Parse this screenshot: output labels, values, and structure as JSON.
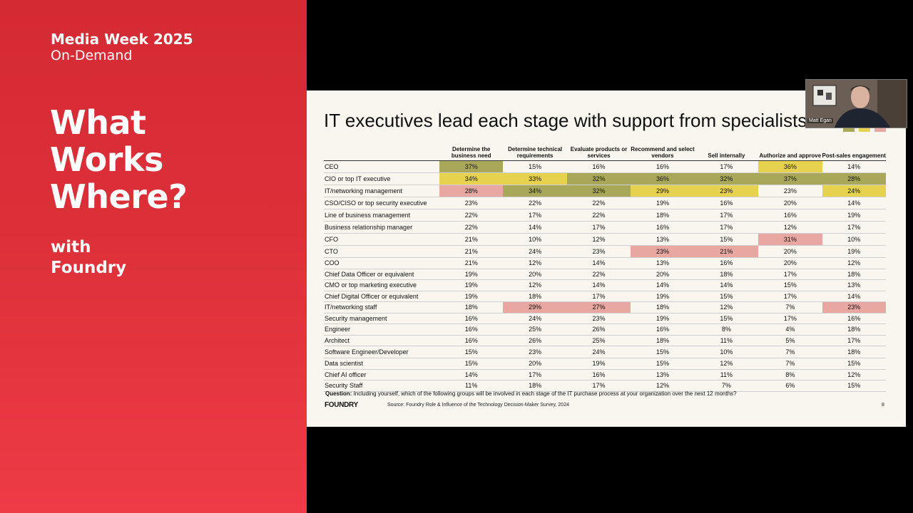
{
  "event": {
    "title": "Media Week 2025",
    "subtitle": "On-Demand"
  },
  "headline": {
    "line1": "What",
    "line2": "Works",
    "line3": "Where?"
  },
  "with": {
    "line1": "with",
    "line2": "Foundry"
  },
  "slide": {
    "title": "IT executives lead each stage with support from specialists",
    "columns": [
      "Determine the business need",
      "Determine technical requirements",
      "Evaluate products or services",
      "Recommend and select vendors",
      "Sell internally",
      "Authorize and approve",
      "Post-sales engagement"
    ],
    "rows": [
      {
        "label": "CEO",
        "values": [
          "37%",
          "15%",
          "16%",
          "16%",
          "17%",
          "36%",
          "14%"
        ],
        "hl": [
          "g",
          "",
          "",
          "",
          "",
          "y",
          ""
        ]
      },
      {
        "label": "CIO or top IT executive",
        "values": [
          "34%",
          "33%",
          "32%",
          "36%",
          "32%",
          "37%",
          "28%"
        ],
        "hl": [
          "y",
          "y",
          "g",
          "g",
          "g",
          "g",
          "g"
        ]
      },
      {
        "label": "IT/networking management",
        "values": [
          "28%",
          "34%",
          "32%",
          "29%",
          "23%",
          "23%",
          "24%"
        ],
        "hl": [
          "p",
          "g",
          "g",
          "y",
          "y",
          "",
          "y"
        ]
      },
      {
        "label": "CSO/CISO or top security executive",
        "values": [
          "23%",
          "22%",
          "22%",
          "19%",
          "16%",
          "20%",
          "14%"
        ],
        "hl": [
          "",
          "",
          "",
          "",
          "",
          "",
          ""
        ]
      },
      {
        "label": "Line of business management",
        "values": [
          "22%",
          "17%",
          "22%",
          "18%",
          "17%",
          "16%",
          "19%"
        ],
        "hl": [
          "",
          "",
          "",
          "",
          "",
          "",
          ""
        ]
      },
      {
        "label": "Business relationship manager",
        "values": [
          "22%",
          "14%",
          "17%",
          "16%",
          "17%",
          "12%",
          "17%"
        ],
        "hl": [
          "",
          "",
          "",
          "",
          "",
          "",
          ""
        ]
      },
      {
        "label": "CFO",
        "values": [
          "21%",
          "10%",
          "12%",
          "13%",
          "15%",
          "31%",
          "10%"
        ],
        "hl": [
          "",
          "",
          "",
          "",
          "",
          "p",
          ""
        ]
      },
      {
        "label": "CTO",
        "values": [
          "21%",
          "24%",
          "23%",
          "23%",
          "21%",
          "20%",
          "19%"
        ],
        "hl": [
          "",
          "",
          "",
          "p",
          "p",
          "",
          ""
        ]
      },
      {
        "label": "COO",
        "values": [
          "21%",
          "12%",
          "14%",
          "13%",
          "16%",
          "20%",
          "12%"
        ],
        "hl": [
          "",
          "",
          "",
          "",
          "",
          "",
          ""
        ]
      },
      {
        "label": "Chief Data Officer or equivalent",
        "values": [
          "19%",
          "20%",
          "22%",
          "20%",
          "18%",
          "17%",
          "18%"
        ],
        "hl": [
          "",
          "",
          "",
          "",
          "",
          "",
          ""
        ]
      },
      {
        "label": "CMO or top marketing executive",
        "values": [
          "19%",
          "12%",
          "14%",
          "14%",
          "14%",
          "15%",
          "13%"
        ],
        "hl": [
          "",
          "",
          "",
          "",
          "",
          "",
          ""
        ]
      },
      {
        "label": "Chief Digital Officer or equivalent",
        "values": [
          "19%",
          "18%",
          "17%",
          "19%",
          "15%",
          "17%",
          "14%"
        ],
        "hl": [
          "",
          "",
          "",
          "",
          "",
          "",
          ""
        ]
      },
      {
        "label": "IT/networking staff",
        "values": [
          "18%",
          "29%",
          "27%",
          "18%",
          "12%",
          "7%",
          "23%"
        ],
        "hl": [
          "",
          "p",
          "p",
          "",
          "",
          "",
          "p"
        ]
      },
      {
        "label": "Security management",
        "values": [
          "16%",
          "24%",
          "23%",
          "19%",
          "15%",
          "17%",
          "16%"
        ],
        "hl": [
          "",
          "",
          "",
          "",
          "",
          "",
          ""
        ]
      },
      {
        "label": "Engineer",
        "values": [
          "16%",
          "25%",
          "26%",
          "16%",
          "8%",
          "4%",
          "18%"
        ],
        "hl": [
          "",
          "",
          "",
          "",
          "",
          "",
          ""
        ]
      },
      {
        "label": "Architect",
        "values": [
          "16%",
          "26%",
          "25%",
          "18%",
          "11%",
          "5%",
          "17%"
        ],
        "hl": [
          "",
          "",
          "",
          "",
          "",
          "",
          ""
        ]
      },
      {
        "label": "Software Engineer/Developer",
        "values": [
          "15%",
          "23%",
          "24%",
          "15%",
          "10%",
          "7%",
          "18%"
        ],
        "hl": [
          "",
          "",
          "",
          "",
          "",
          "",
          ""
        ]
      },
      {
        "label": "Data scientist",
        "values": [
          "15%",
          "20%",
          "19%",
          "15%",
          "12%",
          "7%",
          "15%"
        ],
        "hl": [
          "",
          "",
          "",
          "",
          "",
          "",
          ""
        ]
      },
      {
        "label": "Chief AI officer",
        "values": [
          "14%",
          "17%",
          "16%",
          "13%",
          "11%",
          "8%",
          "12%"
        ],
        "hl": [
          "",
          "",
          "",
          "",
          "",
          "",
          ""
        ]
      },
      {
        "label": "Security Staff",
        "values": [
          "11%",
          "18%",
          "17%",
          "12%",
          "7%",
          "6%",
          "15%"
        ],
        "hl": [
          "",
          "",
          "",
          "",
          "",
          "",
          ""
        ]
      }
    ],
    "question_label": "Question:",
    "question": "Including yourself, which of the following groups will be involved in each stage of the IT purchase process at your organization over the next 12 months?",
    "logo": "FOUNDRY",
    "source": "Source: Foundry Role & Influence of the Technology Decision-Maker Survey, 2024",
    "page": "8"
  },
  "colors": {
    "green": "#a9a85a",
    "yellow": "#e6d24e",
    "pink": "#e8a7a1"
  },
  "video": {
    "name": "Matt Egan"
  }
}
